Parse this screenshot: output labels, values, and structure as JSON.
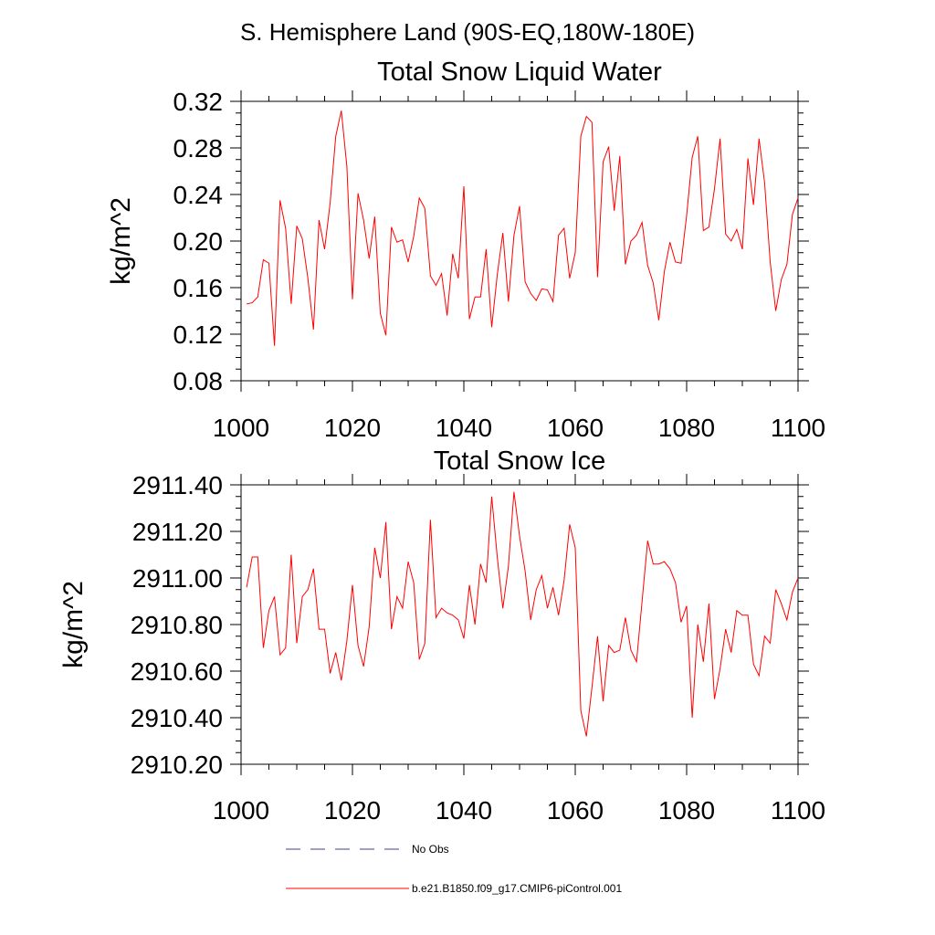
{
  "page": {
    "title": "S. Hemisphere Land (90S-EQ,180W-180E)"
  },
  "colors": {
    "model": "#ff0000",
    "obs": "#404080",
    "axis": "#000000"
  },
  "legend": {
    "obs_label": "No Obs",
    "model_label": "b.e21.B1850.f09_g17.CMIP6-piControl.001"
  },
  "chart_data": [
    {
      "type": "line",
      "title": "Total Snow Liquid Water",
      "xlabel": "",
      "ylabel": "kg/m^2",
      "xlim": [
        1000,
        1100
      ],
      "ylim": [
        0.08,
        0.32
      ],
      "xticks": [
        1000,
        1020,
        1040,
        1060,
        1080,
        1100
      ],
      "xtick_labels": [
        "1000",
        "1020",
        "1040",
        "1060",
        "1080",
        "1100"
      ],
      "yticks": [
        0.08,
        0.12,
        0.16,
        0.2,
        0.24,
        0.28,
        0.32
      ],
      "ytick_labels": [
        "0.08",
        "0.12",
        "0.16",
        "0.20",
        "0.24",
        "0.28",
        "0.32"
      ],
      "grid": false,
      "series": [
        {
          "name": "b.e21.B1850.f09_g17.CMIP6-piControl.001",
          "x": [
            1001,
            1002,
            1003,
            1004,
            1005,
            1006,
            1007,
            1008,
            1009,
            1010,
            1011,
            1012,
            1013,
            1014,
            1015,
            1016,
            1017,
            1018,
            1019,
            1020,
            1021,
            1022,
            1023,
            1024,
            1025,
            1026,
            1027,
            1028,
            1029,
            1030,
            1031,
            1032,
            1033,
            1034,
            1035,
            1036,
            1037,
            1038,
            1039,
            1040,
            1041,
            1042,
            1043,
            1044,
            1045,
            1046,
            1047,
            1048,
            1049,
            1050,
            1051,
            1052,
            1053,
            1054,
            1055,
            1056,
            1057,
            1058,
            1059,
            1060,
            1061,
            1062,
            1063,
            1064,
            1065,
            1066,
            1067,
            1068,
            1069,
            1070,
            1071,
            1072,
            1073,
            1074,
            1075,
            1076,
            1077,
            1078,
            1079,
            1080,
            1081,
            1082,
            1083,
            1084,
            1085,
            1086,
            1087,
            1088,
            1089,
            1090,
            1091,
            1092,
            1093,
            1094,
            1095,
            1096,
            1097,
            1098,
            1099,
            1100
          ],
          "values": [
            0.146,
            0.147,
            0.152,
            0.184,
            0.181,
            0.11,
            0.235,
            0.211,
            0.146,
            0.213,
            0.202,
            0.168,
            0.124,
            0.218,
            0.193,
            0.233,
            0.29,
            0.312,
            0.264,
            0.15,
            0.241,
            0.218,
            0.185,
            0.221,
            0.138,
            0.119,
            0.212,
            0.199,
            0.201,
            0.182,
            0.204,
            0.237,
            0.228,
            0.17,
            0.162,
            0.172,
            0.136,
            0.189,
            0.168,
            0.247,
            0.133,
            0.152,
            0.152,
            0.193,
            0.126,
            0.171,
            0.207,
            0.148,
            0.205,
            0.23,
            0.165,
            0.155,
            0.149,
            0.159,
            0.158,
            0.148,
            0.205,
            0.211,
            0.168,
            0.19,
            0.29,
            0.307,
            0.302,
            0.169,
            0.268,
            0.281,
            0.226,
            0.273,
            0.18,
            0.2,
            0.205,
            0.216,
            0.179,
            0.164,
            0.132,
            0.174,
            0.199,
            0.182,
            0.181,
            0.222,
            0.272,
            0.29,
            0.209,
            0.212,
            0.245,
            0.288,
            0.206,
            0.2,
            0.21,
            0.193,
            0.271,
            0.231,
            0.288,
            0.25,
            0.182,
            0.14,
            0.167,
            0.18,
            0.223,
            0.237
          ]
        }
      ]
    },
    {
      "type": "line",
      "title": "Total Snow Ice",
      "xlabel": "",
      "ylabel": "kg/m^2",
      "xlim": [
        1000,
        1100
      ],
      "ylim": [
        2910.2,
        2911.4
      ],
      "xticks": [
        1000,
        1020,
        1040,
        1060,
        1080,
        1100
      ],
      "xtick_labels": [
        "1000",
        "1020",
        "1040",
        "1060",
        "1080",
        "1100"
      ],
      "yticks": [
        2910.2,
        2910.4,
        2910.6,
        2910.8,
        2911.0,
        2911.2,
        2911.4
      ],
      "ytick_labels": [
        "2910.20",
        "2910.40",
        "2910.60",
        "2910.80",
        "2911.00",
        "2911.20",
        "2911.40"
      ],
      "grid": false,
      "series": [
        {
          "name": "b.e21.B1850.f09_g17.CMIP6-piControl.001",
          "x": [
            1001,
            1002,
            1003,
            1004,
            1005,
            1006,
            1007,
            1008,
            1009,
            1010,
            1011,
            1012,
            1013,
            1014,
            1015,
            1016,
            1017,
            1018,
            1019,
            1020,
            1021,
            1022,
            1023,
            1024,
            1025,
            1026,
            1027,
            1028,
            1029,
            1030,
            1031,
            1032,
            1033,
            1034,
            1035,
            1036,
            1037,
            1038,
            1039,
            1040,
            1041,
            1042,
            1043,
            1044,
            1045,
            1046,
            1047,
            1048,
            1049,
            1050,
            1051,
            1052,
            1053,
            1054,
            1055,
            1056,
            1057,
            1058,
            1059,
            1060,
            1061,
            1062,
            1063,
            1064,
            1065,
            1066,
            1067,
            1068,
            1069,
            1070,
            1071,
            1072,
            1073,
            1074,
            1075,
            1076,
            1077,
            1078,
            1079,
            1080,
            1081,
            1082,
            1083,
            1084,
            1085,
            1086,
            1087,
            1088,
            1089,
            1090,
            1091,
            1092,
            1093,
            1094,
            1095,
            1096,
            1097,
            1098,
            1099,
            1100
          ],
          "values": [
            2910.96,
            2911.09,
            2911.09,
            2910.7,
            2910.86,
            2910.92,
            2910.67,
            2910.7,
            2911.1,
            2910.72,
            2910.92,
            2910.95,
            2911.04,
            2910.78,
            2910.78,
            2910.59,
            2910.68,
            2910.56,
            2910.73,
            2910.97,
            2910.71,
            2910.62,
            2910.79,
            2911.13,
            2911.0,
            2911.24,
            2910.78,
            2910.92,
            2910.87,
            2911.07,
            2910.98,
            2910.65,
            2910.72,
            2911.25,
            2910.83,
            2910.87,
            2910.85,
            2910.84,
            2910.82,
            2910.74,
            2910.97,
            2910.8,
            2911.06,
            2910.98,
            2911.35,
            2911.09,
            2910.87,
            2911.05,
            2911.37,
            2911.18,
            2911.03,
            2910.82,
            2910.95,
            2911.01,
            2910.87,
            2910.96,
            2910.84,
            2910.99,
            2911.23,
            2911.13,
            2910.43,
            2910.32,
            2910.53,
            2910.75,
            2910.47,
            2910.71,
            2910.68,
            2910.69,
            2910.83,
            2910.69,
            2910.64,
            2910.9,
            2911.16,
            2911.06,
            2911.06,
            2911.07,
            2911.04,
            2910.98,
            2910.81,
            2910.88,
            2910.4,
            2910.8,
            2910.64,
            2910.89,
            2910.48,
            2910.61,
            2910.78,
            2910.68,
            2910.86,
            2910.84,
            2910.84,
            2910.63,
            2910.58,
            2910.75,
            2910.72,
            2910.95,
            2910.89,
            2910.82,
            2910.94,
            2911.0
          ]
        }
      ]
    }
  ]
}
